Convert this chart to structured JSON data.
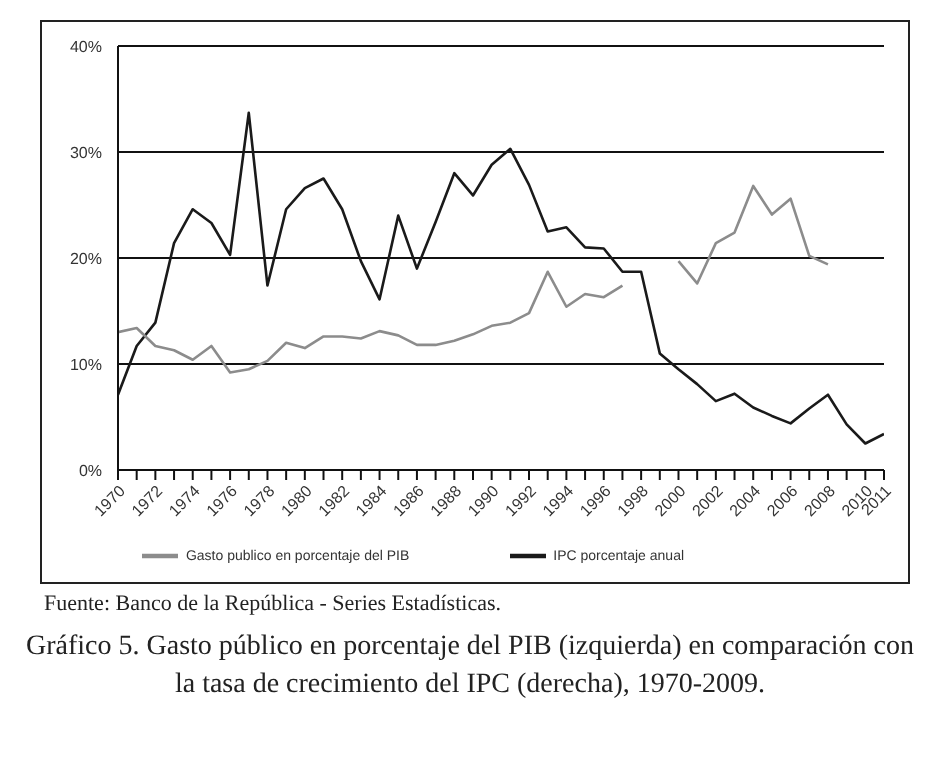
{
  "chart_data": {
    "type": "line",
    "title": "Gráfico 5. Gasto público en porcentaje del PIB (izquierda) en comparación con la tasa de crecimiento del IPC (derecha), 1970-2009.",
    "annotations": [
      "Fuente: Banco de la República - Series Estadísticas."
    ],
    "x": [
      1970,
      1971,
      1972,
      1973,
      1974,
      1975,
      1976,
      1977,
      1978,
      1979,
      1980,
      1981,
      1982,
      1983,
      1984,
      1985,
      1986,
      1987,
      1988,
      1989,
      1990,
      1991,
      1992,
      1993,
      1994,
      1995,
      1996,
      1997,
      1998,
      1999,
      2000,
      2001,
      2002,
      2003,
      2004,
      2005,
      2006,
      2007,
      2008,
      2009,
      2010,
      2011
    ],
    "series": [
      {
        "name": "IPC porcentaje anual",
        "color": "#1a1a1a",
        "values": [
          7.1,
          11.7,
          13.9,
          21.4,
          24.6,
          23.3,
          20.3,
          33.7,
          17.4,
          24.6,
          26.6,
          27.5,
          24.6,
          19.7,
          16.1,
          24.0,
          19.0,
          23.4,
          28.0,
          25.9,
          28.8,
          30.3,
          26.9,
          22.5,
          22.9,
          21.0,
          20.9,
          18.7,
          18.7,
          11.0,
          9.5,
          8.1,
          6.5,
          7.2,
          5.9,
          5.1,
          4.4,
          5.8,
          7.1,
          4.3,
          2.5,
          3.4
        ]
      },
      {
        "name": "Gasto publico en porcentaje del PIB",
        "color": "#8c8c8c",
        "values": [
          13.0,
          13.4,
          11.7,
          11.3,
          10.4,
          11.7,
          9.2,
          9.5,
          10.3,
          12.0,
          11.5,
          12.6,
          12.6,
          12.4,
          13.1,
          12.7,
          11.8,
          11.8,
          12.2,
          12.8,
          13.6,
          13.9,
          14.8,
          18.7,
          15.4,
          16.6,
          16.3,
          17.4,
          null,
          null,
          19.7,
          17.6,
          21.4,
          22.4,
          26.8,
          24.1,
          25.6,
          20.2,
          19.4,
          null,
          null,
          null
        ]
      }
    ],
    "xlim": [
      1970,
      2011
    ],
    "xticks": [
      1970,
      {
        "value": 1971,
        "label": null
      },
      1972,
      {
        "value": 1973,
        "label": null
      },
      1974,
      {
        "value": 1975,
        "label": null
      },
      1976,
      {
        "value": 1977,
        "label": null
      },
      1978,
      {
        "value": 1979,
        "label": null
      },
      1980,
      {
        "value": 1981,
        "label": null
      },
      1982,
      {
        "value": 1983,
        "label": null
      },
      1984,
      {
        "value": 1985,
        "label": null
      },
      1986,
      {
        "value": 1987,
        "label": null
      },
      1988,
      {
        "value": 1989,
        "label": null
      },
      1990,
      {
        "value": 1991,
        "label": null
      },
      1992,
      {
        "value": 1993,
        "label": null
      },
      1994,
      {
        "value": 1995,
        "label": null
      },
      1996,
      {
        "value": 1997,
        "label": null
      },
      1998,
      {
        "value": 1999,
        "label": null
      },
      2000,
      {
        "value": 2001,
        "label": null
      },
      2002,
      {
        "value": 2003,
        "label": null
      },
      2004,
      {
        "value": 2005,
        "label": null
      },
      2006,
      {
        "value": 2007,
        "label": null
      },
      2008,
      {
        "value": 2009,
        "label": null
      },
      2010,
      2011
    ],
    "ylim": [
      0,
      40
    ],
    "yticks": [
      {
        "value": 0,
        "label": "0%"
      },
      {
        "value": 10,
        "label": "10%"
      },
      {
        "value": 20,
        "label": "20%"
      },
      {
        "value": 30,
        "label": "30%"
      },
      {
        "value": 40,
        "label": "40%"
      }
    ],
    "grid": "y",
    "legend": "bottom",
    "marker": "none",
    "line_style": "solid"
  }
}
